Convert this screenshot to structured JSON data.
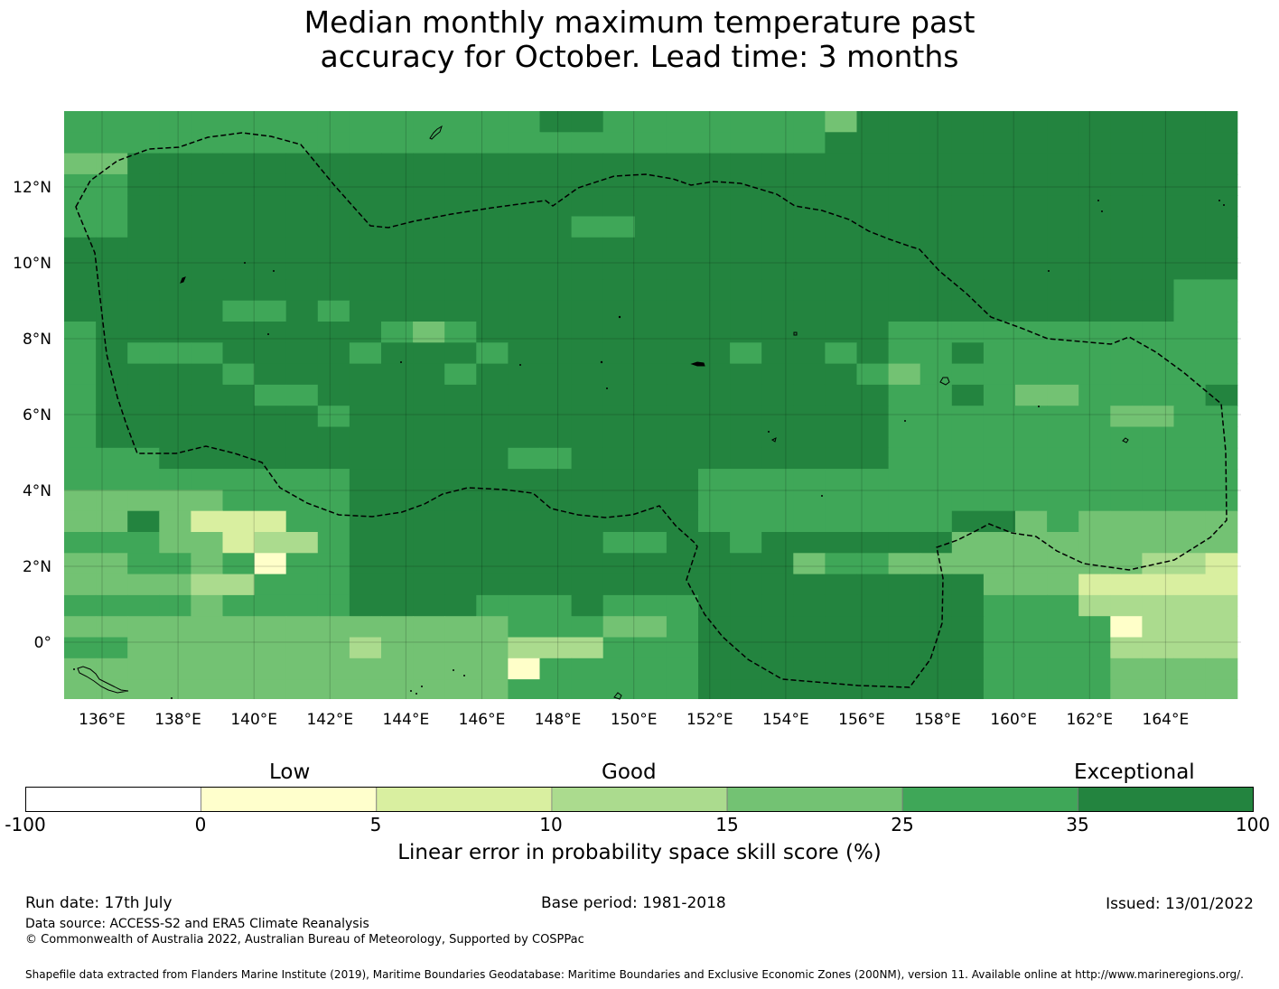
{
  "title": {
    "line1": "Median monthly maximum temperature past",
    "line2": "accuracy for October. Lead time: 3 months"
  },
  "map": {
    "lon_ticks": [
      "136°E",
      "138°E",
      "140°E",
      "142°E",
      "144°E",
      "146°E",
      "148°E",
      "150°E",
      "152°E",
      "154°E",
      "156°E",
      "158°E",
      "160°E",
      "162°E",
      "164°E"
    ],
    "lat_ticks": [
      "12°N",
      "10°N",
      "8°N",
      "6°N",
      "4°N",
      "2°N",
      "0°"
    ],
    "colors": {
      "exceptional": "#23843f",
      "good_high": "#3fa758",
      "good_mid": "#73c273",
      "good_low": "#abdb8e",
      "low_high": "#d9efa0",
      "low": "#ffffc9"
    }
  },
  "colorbar": {
    "categories": [
      "Low",
      "Good",
      "Exceptional"
    ],
    "ticks": [
      "-100",
      "0",
      "5",
      "10",
      "15",
      "25",
      "35",
      "100"
    ],
    "colors": [
      "#ffffff",
      "#ffffcc",
      "#d9efa0",
      "#abdb8e",
      "#73c273",
      "#3fa758",
      "#23843f"
    ],
    "label": "Linear error in probability space skill score (%)"
  },
  "footer": {
    "run_date": "Run date: 17th July",
    "base_period": "Base period: 1981-2018",
    "issued": "Issued: 13/01/2022",
    "data_source": "Data source: ACCESS-S2 and ERA5 Climate Reanalysis",
    "copyright": "© Commonwealth of Australia 2022, Australian Bureau of Meteorology, Supported by COSPPac",
    "shapefile": "Shapefile data extracted from Flanders Marine Institute (2019), Maritime Boundaries Geodatabase: Maritime Boundaries and Exclusive Economic Zones (200NM), version 11. Available online at http://www.marineregions.org/."
  }
}
